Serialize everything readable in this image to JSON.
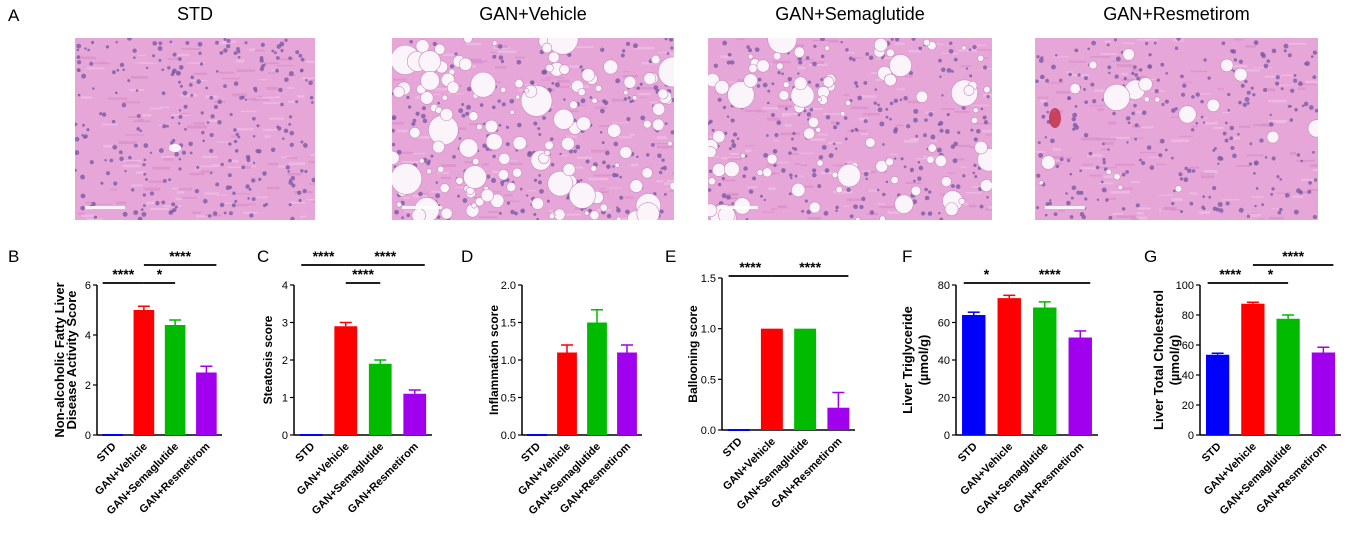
{
  "panel_a": {
    "letter": "A",
    "images": [
      {
        "title": "STD",
        "style": "normal"
      },
      {
        "title": "GAN+Vehicle",
        "style": "heavy"
      },
      {
        "title": "GAN+Semaglutide",
        "style": "medium"
      },
      {
        "title": "GAN+Resmetirom",
        "style": "light"
      }
    ]
  },
  "colors": {
    "STD": "#0000ff",
    "GAN+Vehicle": "#ff0000",
    "GAN+Semaglutide": "#00bb00",
    "GAN+Resmetirom": "#a000ee",
    "tissue": "#e6a6d8",
    "nuclei": "#7a5aa6"
  },
  "chart_data": [
    {
      "panel": "B",
      "type": "bar",
      "categories": [
        "STD",
        "GAN+Vehicle",
        "GAN+Semaglutide",
        "GAN+Resmetirom"
      ],
      "values": [
        0,
        5.0,
        4.4,
        2.5
      ],
      "errors": [
        0,
        0.15,
        0.2,
        0.25
      ],
      "ylabel": [
        "Non-alcoholic Fatty Liver",
        "Disease Activity Score"
      ],
      "ylim": [
        0,
        6
      ],
      "yticks": [
        0,
        2,
        4,
        6
      ],
      "significance": [
        {
          "from": 0,
          "to": 1,
          "label": "****",
          "level": 0
        },
        {
          "from": 1,
          "to": 2,
          "label": "*",
          "level": 0
        },
        {
          "from": 1,
          "to": 3,
          "label": "****",
          "level": 1
        }
      ]
    },
    {
      "panel": "C",
      "type": "bar",
      "categories": [
        "STD",
        "GAN+Vehicle",
        "GAN+Semaglutide",
        "GAN+Resmetirom"
      ],
      "values": [
        0,
        2.9,
        1.9,
        1.1
      ],
      "errors": [
        0,
        0.1,
        0.1,
        0.1
      ],
      "ylabel": [
        "Steatosis score"
      ],
      "ylim": [
        0,
        4
      ],
      "yticks": [
        0,
        1,
        2,
        3,
        4
      ],
      "significance": [
        {
          "from": 0,
          "to": 1,
          "label": "****",
          "level": 1
        },
        {
          "from": 1,
          "to": 2,
          "label": "****",
          "level": 0
        },
        {
          "from": 1,
          "to": 3,
          "label": "****",
          "level": 1
        }
      ]
    },
    {
      "panel": "D",
      "type": "bar",
      "categories": [
        "STD",
        "GAN+Vehicle",
        "GAN+Semaglutide",
        "GAN+Resmetirom"
      ],
      "values": [
        0,
        1.1,
        1.5,
        1.1
      ],
      "errors": [
        0,
        0.1,
        0.17,
        0.1
      ],
      "ylabel": [
        "Inflammation score"
      ],
      "ylim": [
        0,
        2.0
      ],
      "yticks": [
        0,
        0.5,
        1.0,
        1.5,
        2.0
      ],
      "significance": []
    },
    {
      "panel": "E",
      "type": "bar",
      "categories": [
        "STD",
        "GAN+Vehicle",
        "GAN+Semaglutide",
        "GAN+Resmetirom"
      ],
      "values": [
        0,
        1.0,
        1.0,
        0.22
      ],
      "errors": [
        0,
        0,
        0,
        0.15
      ],
      "ylabel": [
        "Ballooning score"
      ],
      "ylim": [
        0,
        1.5
      ],
      "yticks": [
        0,
        0.5,
        1.0,
        1.5
      ],
      "significance": [
        {
          "from": 0,
          "to": 1,
          "label": "****",
          "level": 0
        },
        {
          "from": 1,
          "to": 3,
          "label": "****",
          "level": 0
        }
      ]
    },
    {
      "panel": "F",
      "type": "bar",
      "categories": [
        "STD",
        "GAN+Vehicle",
        "GAN+Semaglutide",
        "GAN+Resmetirom"
      ],
      "values": [
        64,
        73,
        68,
        52
      ],
      "errors": [
        1.5,
        1.5,
        3,
        3.5
      ],
      "ylabel": [
        "Liver Triglyceride",
        "(µmol/g)"
      ],
      "ylim": [
        0,
        80
      ],
      "yticks": [
        0,
        20,
        40,
        60,
        80
      ],
      "significance": [
        {
          "from": 0,
          "to": 1,
          "label": "*",
          "level": 0
        },
        {
          "from": 1,
          "to": 3,
          "label": "****",
          "level": 0
        }
      ]
    },
    {
      "panel": "G",
      "type": "bar",
      "categories": [
        "STD",
        "GAN+Vehicle",
        "GAN+Semaglutide",
        "GAN+Resmetirom"
      ],
      "values": [
        53.5,
        87.5,
        77.5,
        55
      ],
      "errors": [
        1,
        1,
        2.5,
        3.5
      ],
      "ylabel": [
        "Liver Total Cholesterol",
        "(µmol/g)"
      ],
      "ylim": [
        0,
        100
      ],
      "yticks": [
        0,
        20,
        40,
        60,
        80,
        100
      ],
      "significance": [
        {
          "from": 0,
          "to": 1,
          "label": "****",
          "level": 0
        },
        {
          "from": 1,
          "to": 2,
          "label": "*",
          "level": 0
        },
        {
          "from": 1,
          "to": 3,
          "label": "****",
          "level": 1
        }
      ]
    }
  ]
}
